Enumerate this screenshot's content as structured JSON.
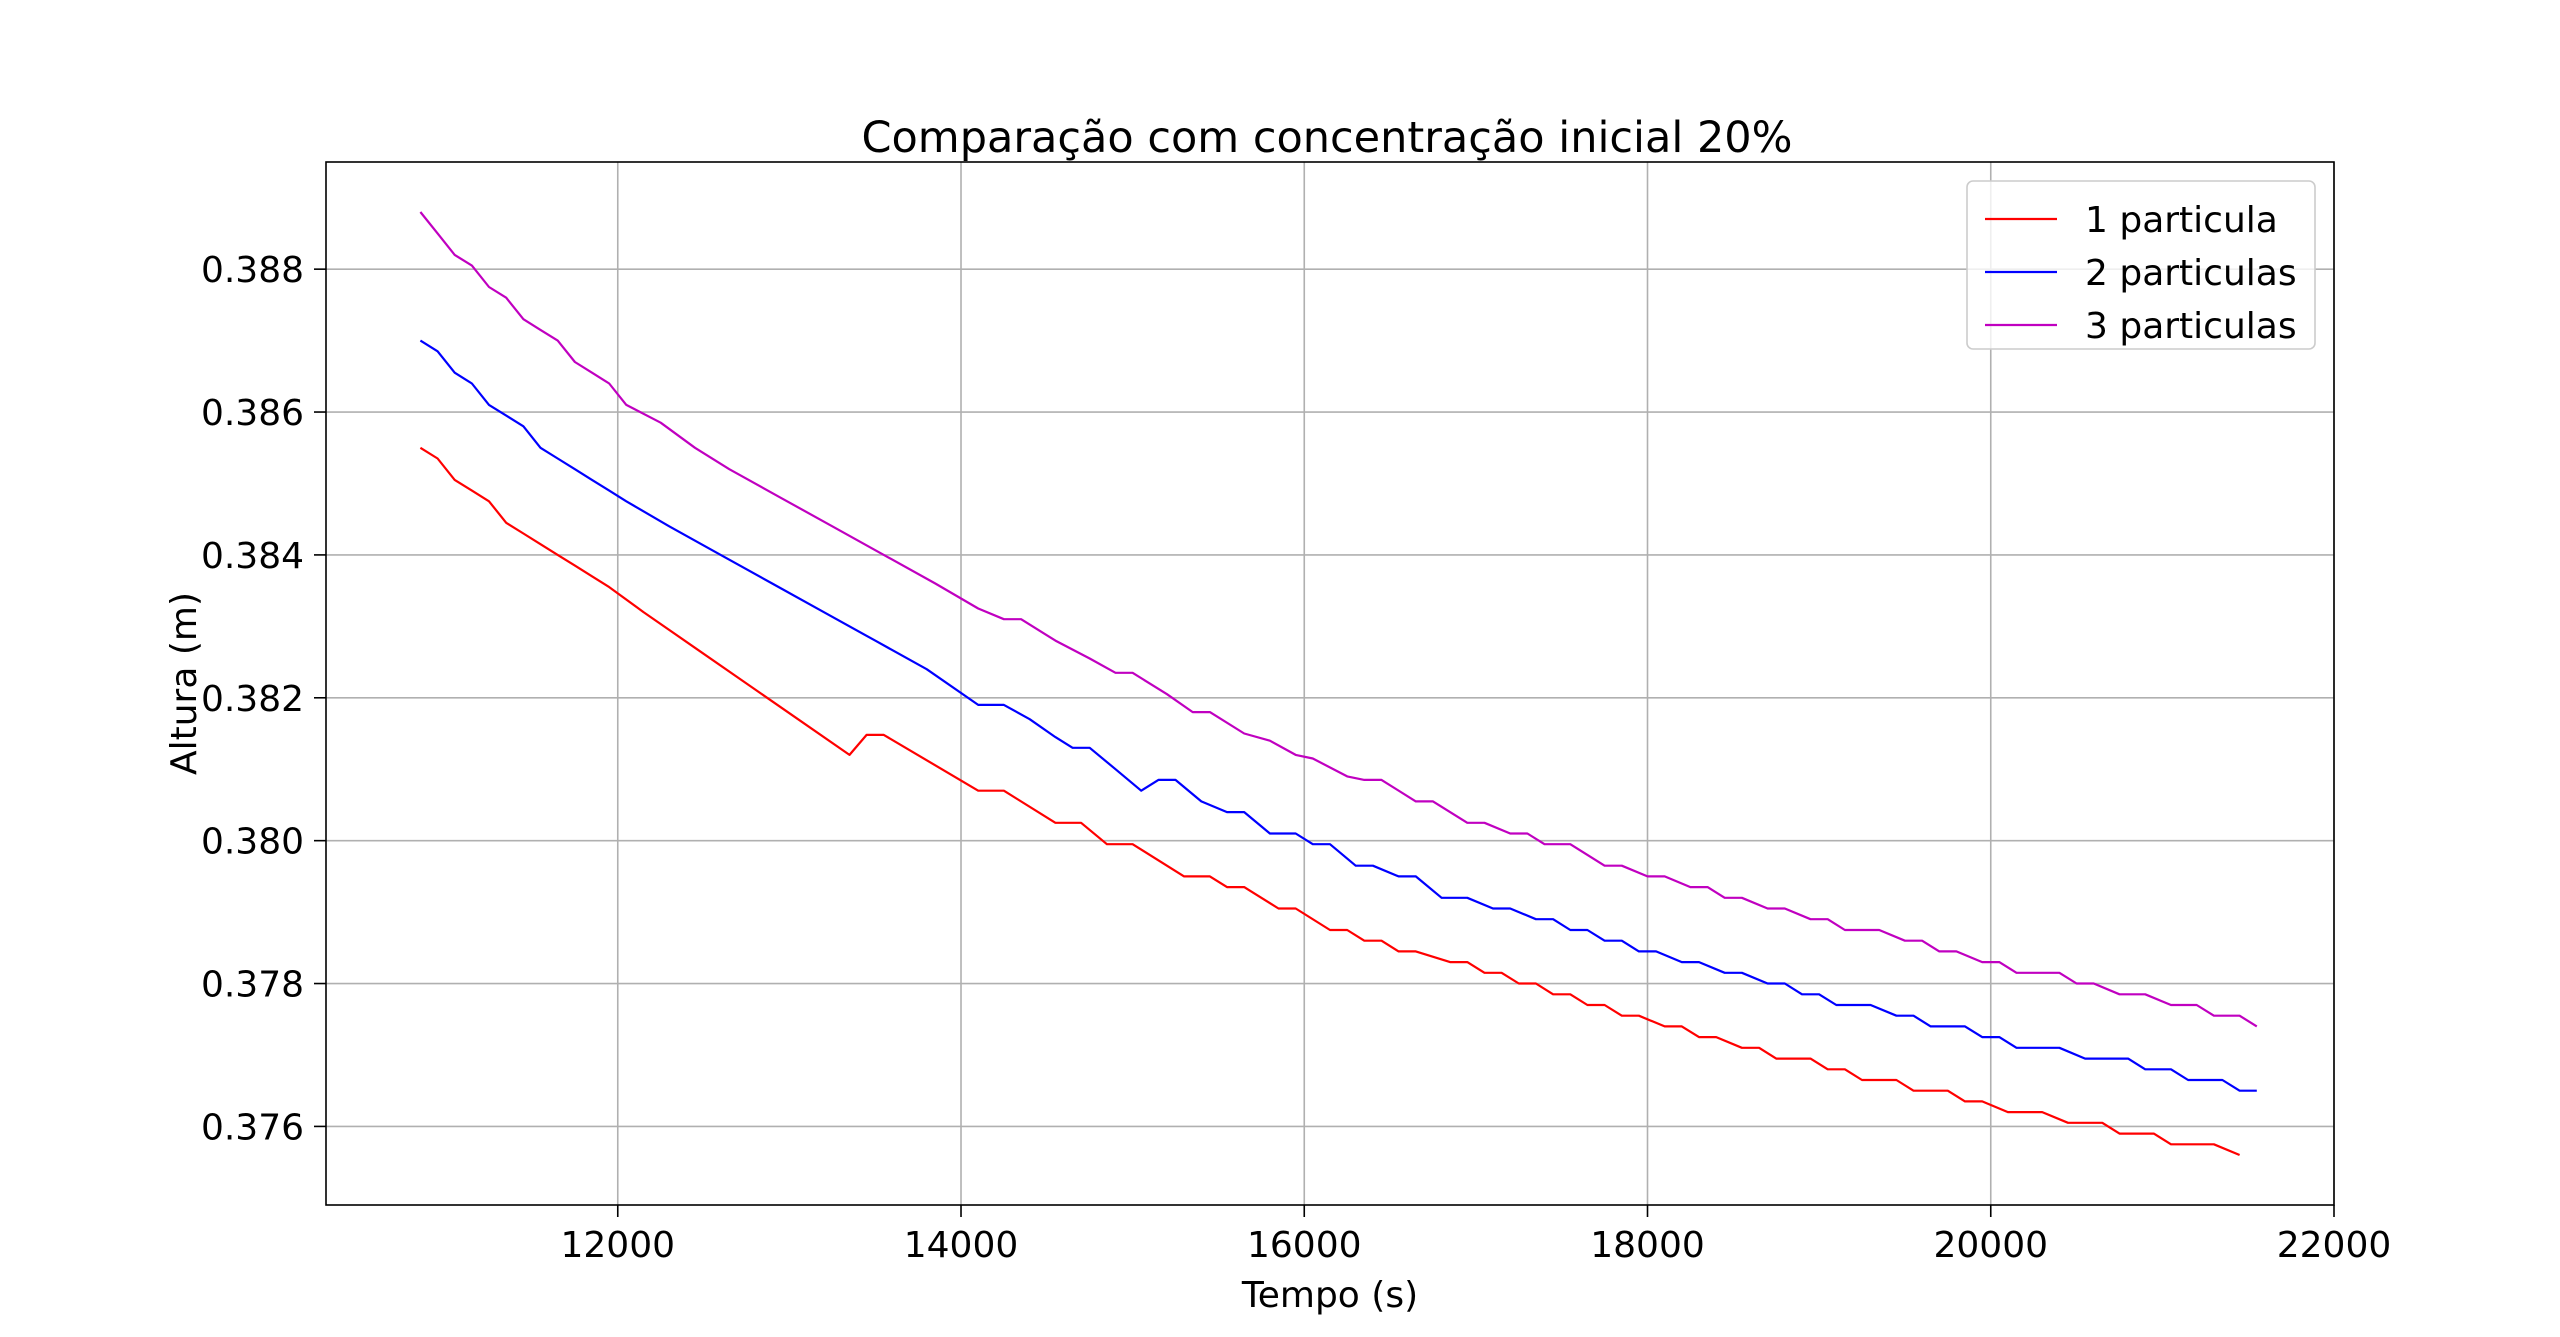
{
  "chart_data": {
    "type": "line",
    "title": "Comparação com concentração inicial 20%",
    "xlabel": "Tempo (s)",
    "ylabel": "Altura (m)",
    "xlim": [
      10300,
      22000
    ],
    "ylim": [
      0.3749,
      0.3895
    ],
    "xticks": [
      12000,
      14000,
      16000,
      18000,
      20000,
      22000
    ],
    "yticks": [
      0.376,
      0.378,
      0.38,
      0.382,
      0.384,
      0.386,
      0.388
    ],
    "grid": true,
    "legend_position": "top-right",
    "series": [
      {
        "name": "1 particula",
        "color": "#ff0000",
        "points": [
          [
            10850,
            0.3855
          ],
          [
            10950,
            0.38535
          ],
          [
            11050,
            0.38505
          ],
          [
            11150,
            0.3849
          ],
          [
            11250,
            0.38475
          ],
          [
            11350,
            0.38445
          ],
          [
            11450,
            0.3843
          ],
          [
            11550,
            0.38415
          ],
          [
            11650,
            0.384
          ],
          [
            11750,
            0.38385
          ],
          [
            11850,
            0.3837
          ],
          [
            11950,
            0.38355
          ],
          [
            12150,
            0.3832
          ],
          [
            12450,
            0.3827
          ],
          [
            12750,
            0.3822
          ],
          [
            13050,
            0.3817
          ],
          [
            13350,
            0.3812
          ],
          [
            13450,
            0.38148
          ],
          [
            13550,
            0.38148
          ],
          [
            14100,
            0.3807
          ],
          [
            14250,
            0.3807
          ],
          [
            14550,
            0.38025
          ],
          [
            14700,
            0.38025
          ],
          [
            14850,
            0.37995
          ],
          [
            15000,
            0.37995
          ],
          [
            15300,
            0.3795
          ],
          [
            15450,
            0.3795
          ],
          [
            15550,
            0.37935
          ],
          [
            15650,
            0.37935
          ],
          [
            15850,
            0.37905
          ],
          [
            15950,
            0.37905
          ],
          [
            16150,
            0.37875
          ],
          [
            16250,
            0.37875
          ],
          [
            16350,
            0.3786
          ],
          [
            16450,
            0.3786
          ],
          [
            16550,
            0.37845
          ],
          [
            16650,
            0.37845
          ],
          [
            16850,
            0.3783
          ],
          [
            16950,
            0.3783
          ],
          [
            17050,
            0.37815
          ],
          [
            17150,
            0.37815
          ],
          [
            17250,
            0.378
          ],
          [
            17350,
            0.378
          ],
          [
            17450,
            0.37785
          ],
          [
            17550,
            0.37785
          ],
          [
            17650,
            0.3777
          ],
          [
            17750,
            0.3777
          ],
          [
            17850,
            0.37755
          ],
          [
            17950,
            0.37755
          ],
          [
            18100,
            0.3774
          ],
          [
            18200,
            0.3774
          ],
          [
            18300,
            0.37725
          ],
          [
            18400,
            0.37725
          ],
          [
            18550,
            0.3771
          ],
          [
            18650,
            0.3771
          ],
          [
            18750,
            0.37695
          ],
          [
            18950,
            0.37695
          ],
          [
            19050,
            0.3768
          ],
          [
            19150,
            0.3768
          ],
          [
            19250,
            0.37665
          ],
          [
            19450,
            0.37665
          ],
          [
            19550,
            0.3765
          ],
          [
            19750,
            0.3765
          ],
          [
            19850,
            0.37635
          ],
          [
            19950,
            0.37635
          ],
          [
            20100,
            0.3762
          ],
          [
            20300,
            0.3762
          ],
          [
            20450,
            0.37605
          ],
          [
            20650,
            0.37605
          ],
          [
            20750,
            0.3759
          ],
          [
            20950,
            0.3759
          ],
          [
            21050,
            0.37575
          ],
          [
            21300,
            0.37575
          ],
          [
            21450,
            0.3756
          ]
        ]
      },
      {
        "name": "2 particulas",
        "color": "#0000ff",
        "points": [
          [
            10850,
            0.387
          ],
          [
            10950,
            0.38685
          ],
          [
            11050,
            0.38655
          ],
          [
            11150,
            0.3864
          ],
          [
            11250,
            0.3861
          ],
          [
            11350,
            0.38595
          ],
          [
            11450,
            0.3858
          ],
          [
            11550,
            0.3855
          ],
          [
            11650,
            0.38535
          ],
          [
            11750,
            0.3852
          ],
          [
            11850,
            0.38505
          ],
          [
            11950,
            0.3849
          ],
          [
            12050,
            0.38475
          ],
          [
            12300,
            0.3844
          ],
          [
            12600,
            0.384
          ],
          [
            12900,
            0.3836
          ],
          [
            13200,
            0.3832
          ],
          [
            13500,
            0.3828
          ],
          [
            13800,
            0.3824
          ],
          [
            14100,
            0.3819
          ],
          [
            14250,
            0.3819
          ],
          [
            14400,
            0.3817
          ],
          [
            14550,
            0.38145
          ],
          [
            14650,
            0.3813
          ],
          [
            14750,
            0.3813
          ],
          [
            14900,
            0.381
          ],
          [
            15050,
            0.3807
          ],
          [
            15150,
            0.38085
          ],
          [
            15250,
            0.38085
          ],
          [
            15400,
            0.38055
          ],
          [
            15550,
            0.3804
          ],
          [
            15650,
            0.3804
          ],
          [
            15800,
            0.3801
          ],
          [
            15950,
            0.3801
          ],
          [
            16050,
            0.37995
          ],
          [
            16150,
            0.37995
          ],
          [
            16300,
            0.37965
          ],
          [
            16400,
            0.37965
          ],
          [
            16550,
            0.3795
          ],
          [
            16650,
            0.3795
          ],
          [
            16800,
            0.3792
          ],
          [
            16950,
            0.3792
          ],
          [
            17100,
            0.37905
          ],
          [
            17200,
            0.37905
          ],
          [
            17350,
            0.3789
          ],
          [
            17450,
            0.3789
          ],
          [
            17550,
            0.37875
          ],
          [
            17650,
            0.37875
          ],
          [
            17750,
            0.3786
          ],
          [
            17850,
            0.3786
          ],
          [
            17950,
            0.37845
          ],
          [
            18050,
            0.37845
          ],
          [
            18200,
            0.3783
          ],
          [
            18300,
            0.3783
          ],
          [
            18450,
            0.37815
          ],
          [
            18550,
            0.37815
          ],
          [
            18700,
            0.378
          ],
          [
            18800,
            0.378
          ],
          [
            18900,
            0.37785
          ],
          [
            19000,
            0.37785
          ],
          [
            19100,
            0.3777
          ],
          [
            19300,
            0.3777
          ],
          [
            19450,
            0.37755
          ],
          [
            19550,
            0.37755
          ],
          [
            19650,
            0.3774
          ],
          [
            19850,
            0.3774
          ],
          [
            19950,
            0.37725
          ],
          [
            20050,
            0.37725
          ],
          [
            20150,
            0.3771
          ],
          [
            20400,
            0.3771
          ],
          [
            20550,
            0.37695
          ],
          [
            20800,
            0.37695
          ],
          [
            20900,
            0.3768
          ],
          [
            21050,
            0.3768
          ],
          [
            21150,
            0.37665
          ],
          [
            21350,
            0.37665
          ],
          [
            21450,
            0.3765
          ],
          [
            21550,
            0.3765
          ]
        ]
      },
      {
        "name": "3 particulas",
        "color": "#c000c0",
        "points": [
          [
            10850,
            0.3888
          ],
          [
            10950,
            0.3885
          ],
          [
            11050,
            0.3882
          ],
          [
            11150,
            0.38805
          ],
          [
            11250,
            0.38775
          ],
          [
            11350,
            0.3876
          ],
          [
            11450,
            0.3873
          ],
          [
            11550,
            0.38715
          ],
          [
            11650,
            0.387
          ],
          [
            11750,
            0.3867
          ],
          [
            11850,
            0.38655
          ],
          [
            11950,
            0.3864
          ],
          [
            12050,
            0.3861
          ],
          [
            12250,
            0.38585
          ],
          [
            12450,
            0.3855
          ],
          [
            12650,
            0.3852
          ],
          [
            12950,
            0.3848
          ],
          [
            13250,
            0.3844
          ],
          [
            13550,
            0.384
          ],
          [
            13850,
            0.3836
          ],
          [
            14100,
            0.38325
          ],
          [
            14250,
            0.3831
          ],
          [
            14350,
            0.3831
          ],
          [
            14550,
            0.3828
          ],
          [
            14750,
            0.38255
          ],
          [
            14900,
            0.38235
          ],
          [
            15000,
            0.38235
          ],
          [
            15200,
            0.38205
          ],
          [
            15350,
            0.3818
          ],
          [
            15450,
            0.3818
          ],
          [
            15650,
            0.3815
          ],
          [
            15800,
            0.3814
          ],
          [
            15950,
            0.3812
          ],
          [
            16050,
            0.38115
          ],
          [
            16250,
            0.3809
          ],
          [
            16350,
            0.38085
          ],
          [
            16450,
            0.38085
          ],
          [
            16650,
            0.38055
          ],
          [
            16750,
            0.38055
          ],
          [
            16950,
            0.38025
          ],
          [
            17050,
            0.38025
          ],
          [
            17200,
            0.3801
          ],
          [
            17300,
            0.3801
          ],
          [
            17400,
            0.37995
          ],
          [
            17550,
            0.37995
          ],
          [
            17750,
            0.37965
          ],
          [
            17850,
            0.37965
          ],
          [
            18000,
            0.3795
          ],
          [
            18100,
            0.3795
          ],
          [
            18250,
            0.37935
          ],
          [
            18350,
            0.37935
          ],
          [
            18450,
            0.3792
          ],
          [
            18550,
            0.3792
          ],
          [
            18700,
            0.37905
          ],
          [
            18800,
            0.37905
          ],
          [
            18950,
            0.3789
          ],
          [
            19050,
            0.3789
          ],
          [
            19150,
            0.37875
          ],
          [
            19350,
            0.37875
          ],
          [
            19500,
            0.3786
          ],
          [
            19600,
            0.3786
          ],
          [
            19700,
            0.37845
          ],
          [
            19800,
            0.37845
          ],
          [
            19950,
            0.3783
          ],
          [
            20050,
            0.3783
          ],
          [
            20150,
            0.37815
          ],
          [
            20400,
            0.37815
          ],
          [
            20500,
            0.378
          ],
          [
            20600,
            0.378
          ],
          [
            20750,
            0.37785
          ],
          [
            20900,
            0.37785
          ],
          [
            21050,
            0.3777
          ],
          [
            21200,
            0.3777
          ],
          [
            21300,
            0.37755
          ],
          [
            21450,
            0.37755
          ],
          [
            21550,
            0.3774
          ]
        ]
      }
    ]
  }
}
